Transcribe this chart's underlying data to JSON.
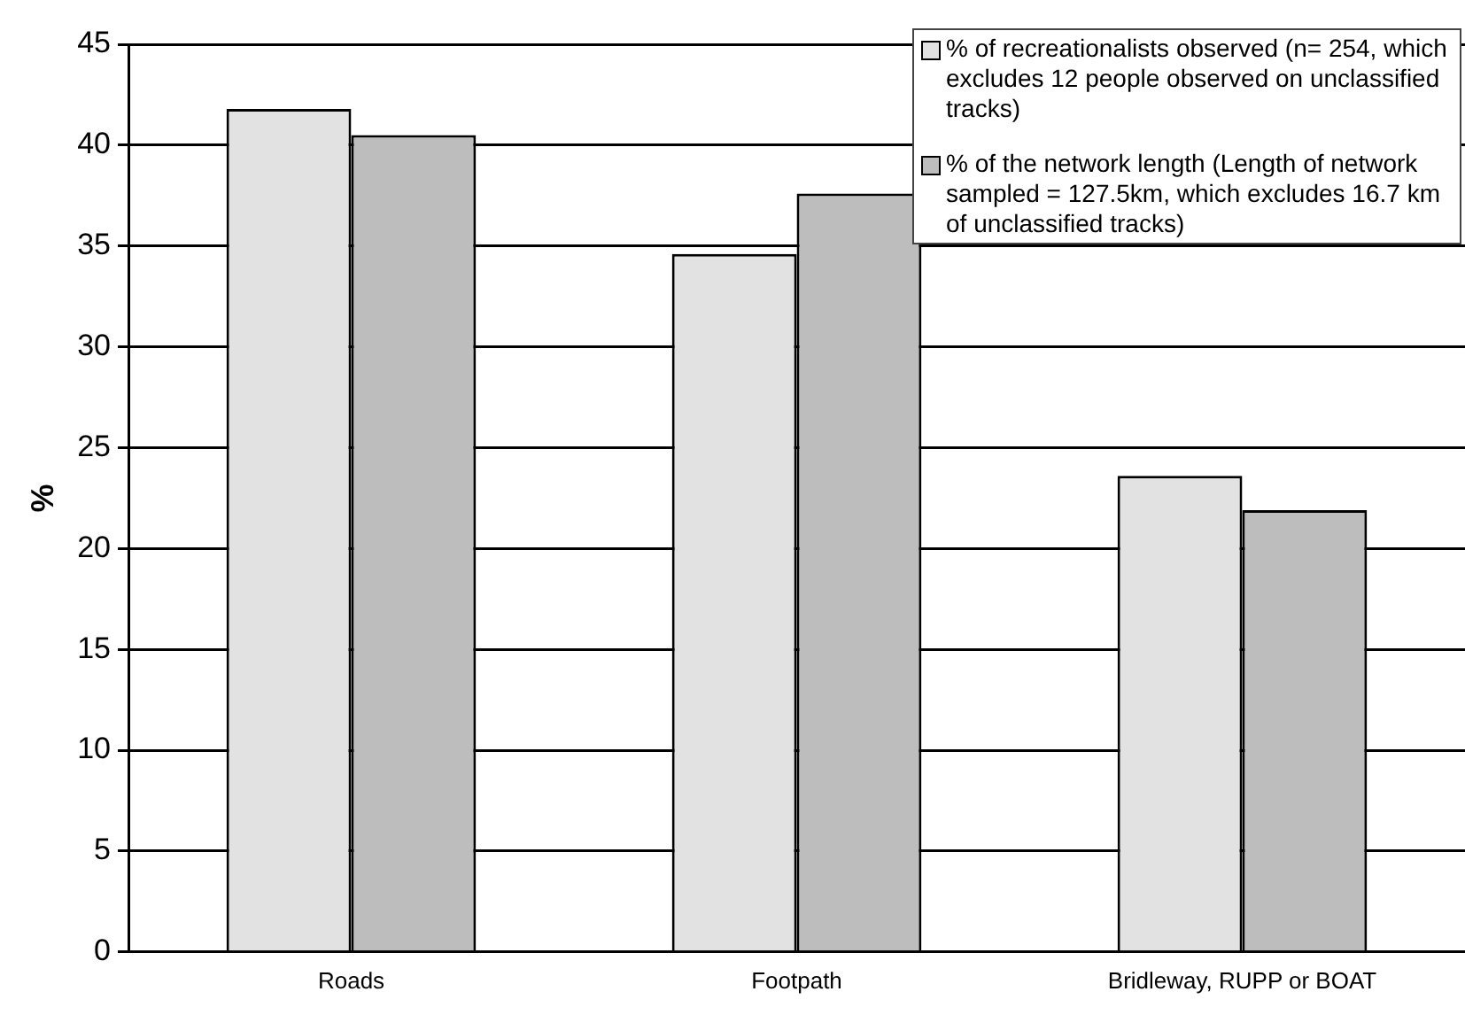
{
  "chart_data": {
    "type": "bar",
    "ylabel": "%",
    "categories": [
      "Roads",
      "Footpath",
      "Bridleway, RUPP or BOAT"
    ],
    "series": [
      {
        "name": "% of recreationalists observed (n= 254, which excludes 12 people observed on unclassified tracks)",
        "color": "#e2e2e2",
        "values": [
          41.8,
          34.6,
          23.6
        ]
      },
      {
        "name": "% of the network length (Length of network sampled = 127.5km, which excludes 16.7 km of unclassified tracks)",
        "color": "#bdbdbd",
        "values": [
          40.5,
          37.6,
          21.9
        ]
      }
    ],
    "ylim": [
      0,
      45
    ],
    "yticks": [
      0,
      5,
      10,
      15,
      20,
      25,
      30,
      35,
      40,
      45
    ],
    "grid": "y",
    "legend": "top right"
  }
}
